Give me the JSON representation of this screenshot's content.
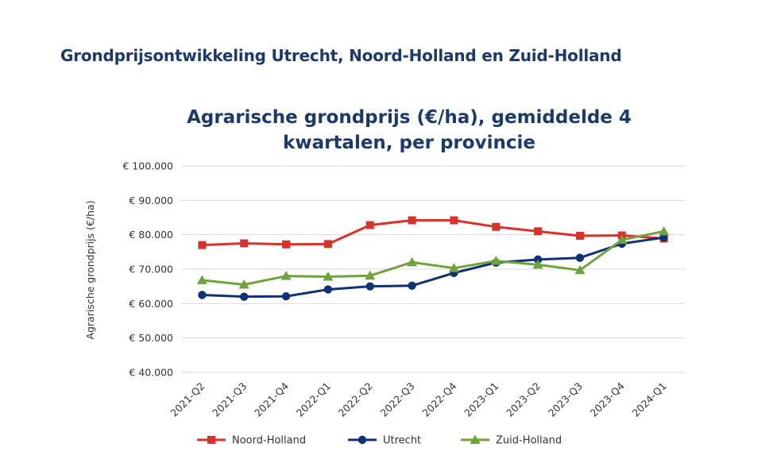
{
  "page": {
    "title": "Grondprijsontwikkeling Utrecht, Noord-Holland en Zuid-Holland"
  },
  "chart_data": {
    "type": "line",
    "title": "Agrarische grondprijs (€/ha), gemiddelde 4 kwartalen, per provincie",
    "title_lines": [
      "Agrarische grondprijs (€/ha), gemiddelde 4",
      "kwartalen, per provincie"
    ],
    "xlabel": "",
    "ylabel": "Agrarische grondprijs (€/ha)",
    "ylim": [
      40000,
      100000
    ],
    "yticks": [
      40000,
      50000,
      60000,
      70000,
      80000,
      90000,
      100000
    ],
    "ytick_labels": [
      "€ 40.000",
      "€ 50.000",
      "€ 60.000",
      "€ 70.000",
      "€ 80.000",
      "€ 90.000",
      "€ 100.000"
    ],
    "grid": true,
    "legend_position": "bottom",
    "categories": [
      "2021-Q2",
      "2021-Q3",
      "2021-Q4",
      "2022-Q1",
      "2022-Q2",
      "2022-Q3",
      "2022-Q4",
      "2023-Q1",
      "2023-Q2",
      "2023-Q3",
      "2023-Q4",
      "2024-Q1"
    ],
    "series": [
      {
        "name": "Noord-Holland",
        "color": "#d9312b",
        "marker": "square",
        "values": [
          77000,
          77500,
          77200,
          77300,
          82800,
          84200,
          84200,
          82300,
          81000,
          79700,
          79800,
          78900
        ]
      },
      {
        "name": "Utrecht",
        "color": "#0f3175",
        "marker": "circle",
        "values": [
          62500,
          62000,
          62100,
          64100,
          65000,
          65200,
          68900,
          71900,
          72800,
          73300,
          77400,
          79200
        ]
      },
      {
        "name": "Zuid-Holland",
        "color": "#6fa33b",
        "marker": "triangle",
        "values": [
          66800,
          65500,
          68000,
          67800,
          68100,
          72000,
          70300,
          72400,
          71300,
          69700,
          78500,
          81000
        ]
      }
    ]
  }
}
